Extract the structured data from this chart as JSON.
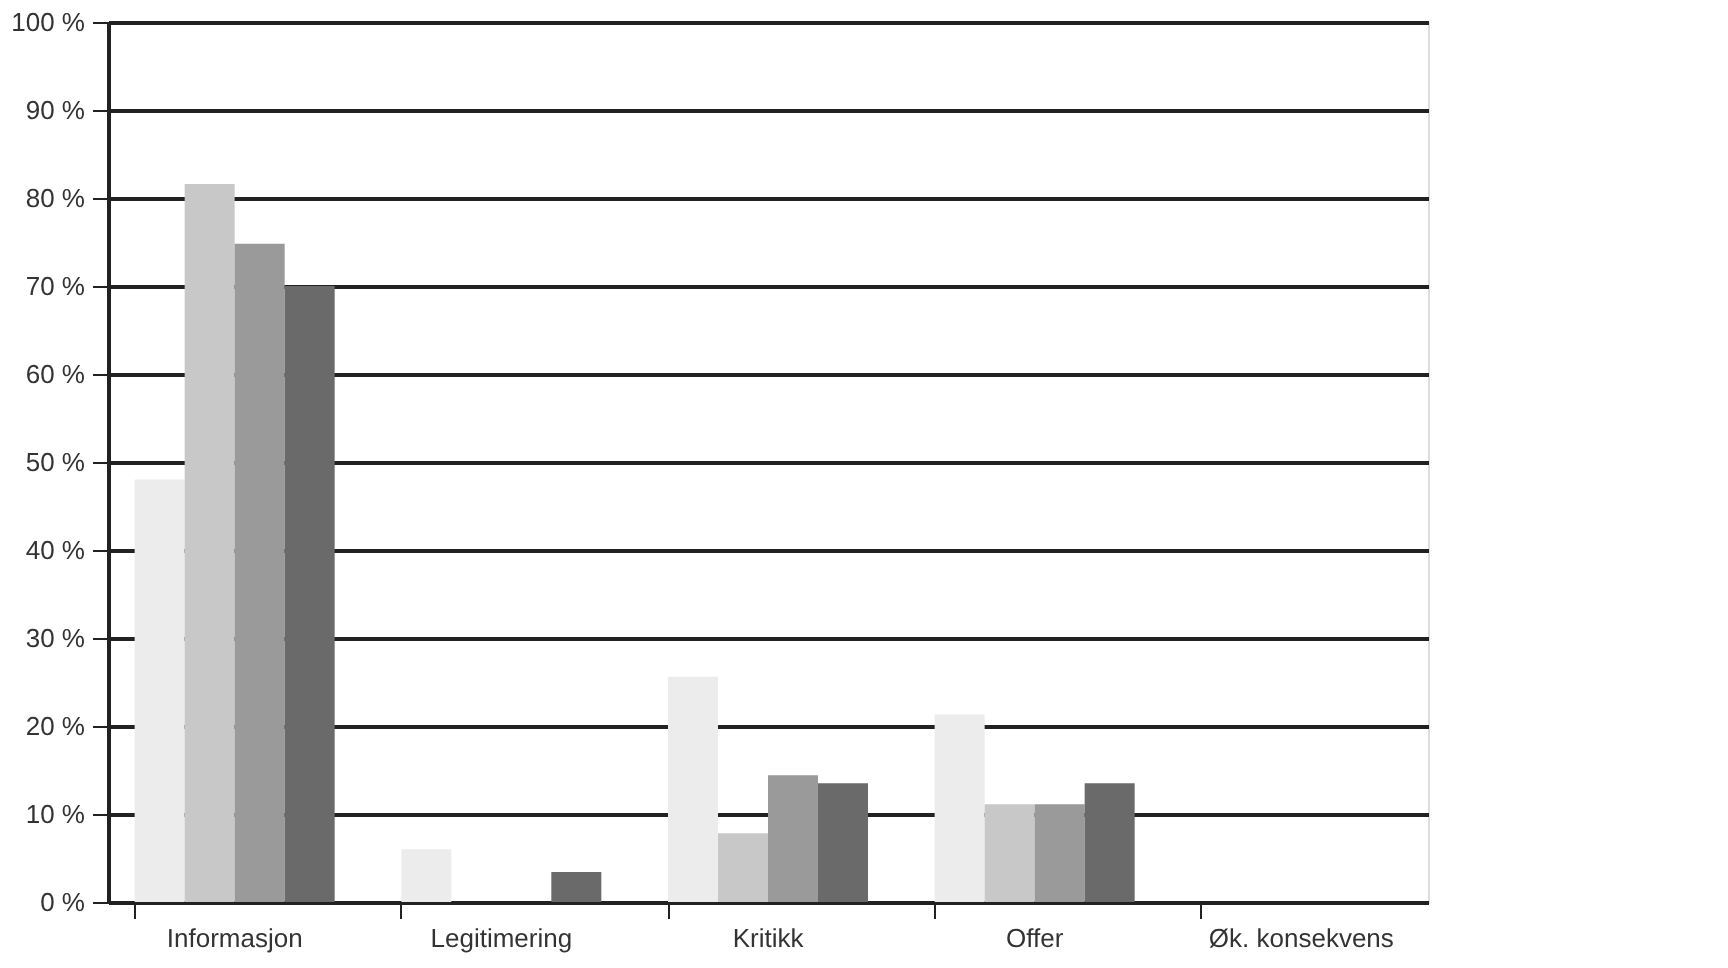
{
  "chart_data": {
    "type": "bar",
    "categories": [
      "Informasjon",
      "Legitimering",
      "Kritikk",
      "Offer",
      "Øk. konsekvens"
    ],
    "series": [
      {
        "color": "#ececec",
        "values": [
          48,
          6,
          25.6,
          21.3,
          0
        ]
      },
      {
        "color": "#c8c8c8",
        "values": [
          81.6,
          0,
          7.8,
          11.1,
          0
        ]
      },
      {
        "color": "#9a9a9a",
        "values": [
          74.8,
          0,
          14.4,
          11.1,
          0
        ]
      },
      {
        "color": "#6a6a6a",
        "values": [
          70,
          3.4,
          13.5,
          13.5,
          0
        ]
      }
    ],
    "ylim": [
      0,
      100
    ],
    "yticks": [
      {
        "value": 0,
        "label": "0 %"
      },
      {
        "value": 10,
        "label": "10 %"
      },
      {
        "value": 20,
        "label": "20 %"
      },
      {
        "value": 30,
        "label": "30 %"
      },
      {
        "value": 40,
        "label": "40 %"
      },
      {
        "value": 50,
        "label": "50 %"
      },
      {
        "value": 60,
        "label": "60 %"
      },
      {
        "value": 70,
        "label": "70 %"
      },
      {
        "value": 80,
        "label": "80 %"
      },
      {
        "value": 90,
        "label": "90 %"
      },
      {
        "value": 100,
        "label": "100 %"
      }
    ],
    "grid": "y",
    "legend": false
  }
}
